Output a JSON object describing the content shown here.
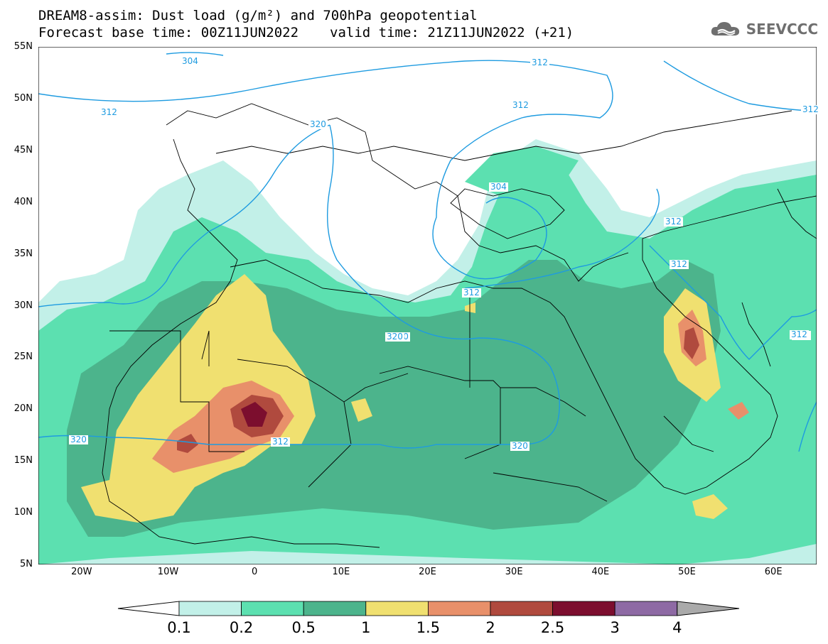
{
  "title": {
    "line1": "DREAM8-assim: Dust load (g/m²) and 700hPa geopotential",
    "base_time": "Forecast base time: 00Z11JUN2022",
    "valid_time": "valid time: 21Z11JUN2022 (+21)"
  },
  "logo": {
    "text": "SEEVCCC",
    "icon": "cloud-icon"
  },
  "map": {
    "lon_range": [
      -25,
      65
    ],
    "lat_range": [
      5,
      55
    ],
    "lat_labels": [
      "55N",
      "50N",
      "45N",
      "40N",
      "35N",
      "30N",
      "25N",
      "20N",
      "15N",
      "10N",
      "5N"
    ],
    "lon_labels": [
      "20W",
      "10W",
      "0",
      "10E",
      "20E",
      "30E",
      "40E",
      "50E",
      "60E"
    ],
    "contour_labels": [
      "304",
      "312",
      "312",
      "312",
      "312",
      "320",
      "312",
      "320",
      "304",
      "312",
      "312",
      "312",
      "320",
      "320",
      "320",
      "312",
      "312"
    ],
    "colors": {
      "land_outline": "#000000",
      "contour": "#1e9be0",
      "bin_0.1": "#c2f0e8",
      "bin_0.2": "#5ce0b0",
      "bin_0.5": "#4cb48c",
      "bin_1": "#f0e070",
      "bin_1.5": "#e8906a",
      "bin_2": "#b04a3e",
      "bin_2.5": "#7c0e2e",
      "bin_3": "#8e6aa4",
      "bin_4": "#aaaaaa"
    }
  },
  "colorbar": {
    "labels": [
      "0.1",
      "0.2",
      "0.5",
      "1",
      "1.5",
      "2",
      "2.5",
      "3",
      "4"
    ],
    "colors": [
      "#c2f0e8",
      "#5ce0b0",
      "#4cb48c",
      "#f0e070",
      "#e8906a",
      "#b04a3e",
      "#7c0e2e",
      "#8e6aa4"
    ]
  }
}
